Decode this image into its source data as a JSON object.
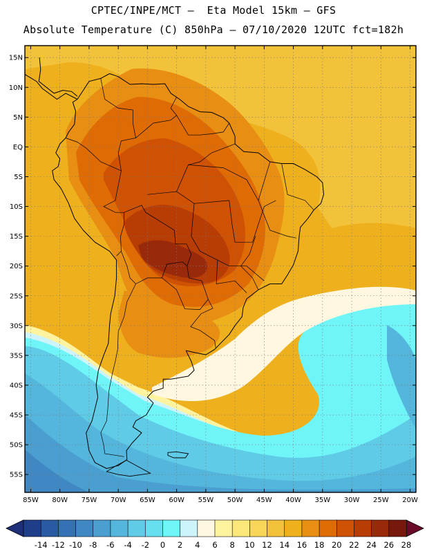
{
  "header": {
    "line1": "CPTEC/INPE/MCT –  Eta Model 15km – GFS",
    "line2": "Absolute Temperature (C) 850hPa – 07/10/2020 12UTC fct=182h"
  },
  "map": {
    "lon_range": [
      -86,
      -19
    ],
    "lat_range": [
      -58,
      17
    ],
    "lat_labels": [
      "15N",
      "10N",
      "5N",
      "EQ",
      "5S",
      "10S",
      "15S",
      "20S",
      "25S",
      "30S",
      "35S",
      "40S",
      "45S",
      "50S",
      "55S"
    ],
    "lat_values": [
      15,
      10,
      5,
      0,
      -5,
      -10,
      -15,
      -20,
      -25,
      -30,
      -35,
      -40,
      -45,
      -50,
      -55
    ],
    "lon_labels": [
      "85W",
      "80W",
      "75W",
      "70W",
      "65W",
      "60W",
      "55W",
      "50W",
      "45W",
      "40W",
      "35W",
      "30W",
      "25W",
      "20W"
    ],
    "lon_values": [
      -85,
      -80,
      -75,
      -70,
      -65,
      -60,
      -55,
      -50,
      -45,
      -40,
      -35,
      -30,
      -25,
      -20
    ],
    "grid": true
  },
  "colorbar": {
    "labels": [
      "-14",
      "-12",
      "-10",
      "-8",
      "-6",
      "-4",
      "-2",
      "0",
      "2",
      "4",
      "6",
      "8",
      "10",
      "12",
      "14",
      "16",
      "18",
      "20",
      "22",
      "24",
      "26",
      "28"
    ],
    "colors": [
      "#1f3e8a",
      "#2a5aa3",
      "#3572b5",
      "#3f88c4",
      "#4a9fd0",
      "#54b6dc",
      "#5fcbe6",
      "#66e0ee",
      "#6ff5f8",
      "#cdf4fb",
      "#fff7df",
      "#fff3a0",
      "#fce87a",
      "#f8d658",
      "#f2c23a",
      "#eeb01d",
      "#e88e12",
      "#df6b05",
      "#cf5204",
      "#b73d05",
      "#98290a",
      "#76180c"
    ],
    "under_color": "#1c2f78",
    "over_color": "#6a0a28"
  }
}
